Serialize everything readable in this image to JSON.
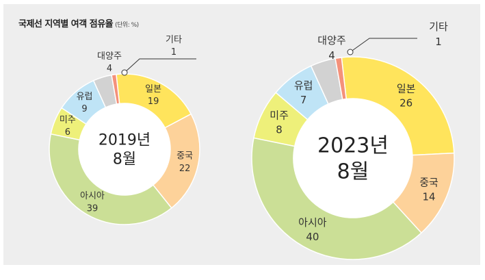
{
  "title": "국제선 지역별 여객 점유율",
  "unit": "(단위: %)",
  "chart_data": [
    {
      "type": "pie",
      "center_label": [
        "2019년",
        "8월"
      ],
      "categories": [
        "일본",
        "중국",
        "아시아",
        "미주",
        "유럽",
        "대양주",
        "기타"
      ],
      "values": [
        19,
        22,
        39,
        6,
        9,
        4,
        1
      ],
      "colors": [
        "#ffe45c",
        "#fdd29a",
        "#cbdf96",
        "#eef07a",
        "#bfe4f6",
        "#d2d2d2",
        "#f4917a"
      ]
    },
    {
      "type": "pie",
      "center_label": [
        "2023년",
        "8월"
      ],
      "categories": [
        "일본",
        "중국",
        "아시아",
        "미주",
        "유럽",
        "대양주",
        "기타"
      ],
      "values": [
        26,
        14,
        40,
        8,
        7,
        4,
        1
      ],
      "colors": [
        "#ffe45c",
        "#fdd29a",
        "#cbdf96",
        "#eef07a",
        "#bfe4f6",
        "#d2d2d2",
        "#f4917a"
      ]
    }
  ]
}
